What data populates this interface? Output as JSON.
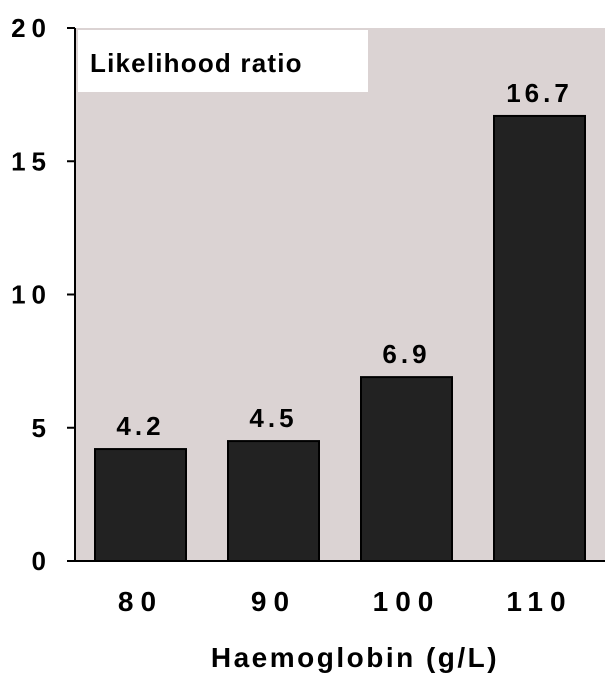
{
  "chart_data": {
    "type": "bar",
    "title": "Likelihood ratio",
    "xlabel": "Haemoglobin (g/L)",
    "ylabel": "",
    "categories": [
      "80",
      "90",
      "100",
      "110"
    ],
    "values": [
      4.2,
      4.5,
      6.9,
      16.7
    ],
    "data_labels": [
      "4.2",
      "4.5",
      "6.9",
      "16.7"
    ],
    "ylim": [
      0,
      20
    ],
    "yticks": [
      0,
      5,
      10,
      15,
      20
    ],
    "ytick_labels": [
      "0",
      "5",
      "10",
      "15",
      "20"
    ],
    "grid": false,
    "legend": "none",
    "colors": {
      "plot_background": "#dbd3d3",
      "bar_fill": "#222222",
      "bar_stroke": "#000000",
      "title_box": "#ffffff",
      "axis": "#000000",
      "text": "#000000"
    }
  }
}
